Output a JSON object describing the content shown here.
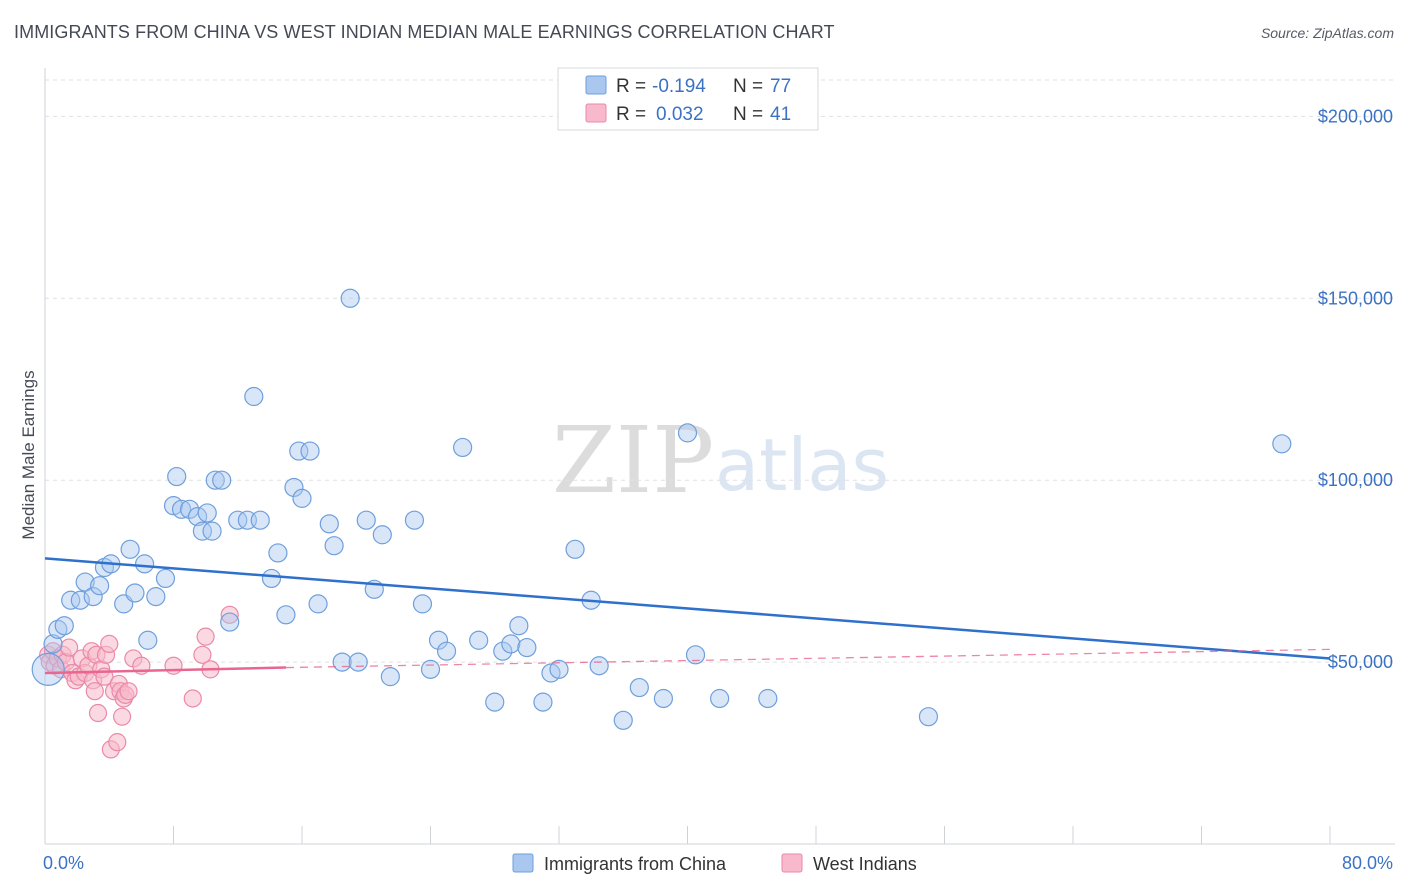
{
  "header": {
    "title": "IMMIGRANTS FROM CHINA VS WEST INDIAN MEDIAN MALE EARNINGS CORRELATION CHART",
    "source": "Source: ZipAtlas.com"
  },
  "watermark": {
    "part1": "ZIP",
    "part2": "atlas"
  },
  "legend": {
    "r_label": "R =",
    "n_label": "N =",
    "rows": [
      {
        "r": "-0.194",
        "n": "77"
      },
      {
        "r": "0.032",
        "n": "41"
      }
    ]
  },
  "bottom_legend": [
    "Immigrants from China",
    "West Indians"
  ],
  "colors": {
    "blue_fill": "#a9c7ef",
    "blue_stroke": "#6f9fdc",
    "blue_line": "#2f70cc",
    "pink_fill": "#f7b9cb",
    "pink_stroke": "#ea8aa8",
    "pink_line": "#e8668f",
    "grid": "#dde1e6",
    "tick_text": "#3b72c4"
  },
  "chart_data": {
    "type": "scatter",
    "title": "IMMIGRANTS FROM CHINA VS WEST INDIAN MEDIAN MALE EARNINGS CORRELATION CHART",
    "xlabel": "",
    "ylabel": "Median Male Earnings",
    "xlim": [
      0,
      80
    ],
    "ylim": [
      0,
      210000
    ],
    "x_tick_labels": [
      "0.0%",
      "80.0%"
    ],
    "y_ticks": [
      50000,
      100000,
      150000,
      200000
    ],
    "y_tick_labels": [
      "$50,000",
      "$100,000",
      "$150,000",
      "$200,000"
    ],
    "grid": true,
    "legend_position": "top-center",
    "series": [
      {
        "name": "Immigrants from China",
        "r": -0.194,
        "n": 77,
        "trend": {
          "x": [
            0,
            80
          ],
          "y": [
            78500,
            51000
          ],
          "style": "solid"
        },
        "points": [
          [
            0.2,
            48000
          ],
          [
            0.5,
            55000
          ],
          [
            0.8,
            59000
          ],
          [
            1.2,
            60000
          ],
          [
            1.6,
            67000
          ],
          [
            2.2,
            67000
          ],
          [
            2.5,
            72000
          ],
          [
            3.0,
            68000
          ],
          [
            3.4,
            71000
          ],
          [
            3.7,
            76000
          ],
          [
            4.1,
            77000
          ],
          [
            4.9,
            66000
          ],
          [
            5.3,
            81000
          ],
          [
            5.6,
            69000
          ],
          [
            6.2,
            77000
          ],
          [
            6.9,
            68000
          ],
          [
            7.5,
            73000
          ],
          [
            6.4,
            56000
          ],
          [
            8.0,
            93000
          ],
          [
            8.5,
            92000
          ],
          [
            8.2,
            101000
          ],
          [
            9.0,
            92000
          ],
          [
            9.5,
            90000
          ],
          [
            10.1,
            91000
          ],
          [
            9.8,
            86000
          ],
          [
            10.4,
            86000
          ],
          [
            10.6,
            100000
          ],
          [
            11.0,
            100000
          ],
          [
            11.5,
            61000
          ],
          [
            12.0,
            89000
          ],
          [
            12.6,
            89000
          ],
          [
            13.0,
            123000
          ],
          [
            13.4,
            89000
          ],
          [
            14.1,
            73000
          ],
          [
            14.5,
            80000
          ],
          [
            15.0,
            63000
          ],
          [
            15.5,
            98000
          ],
          [
            16.0,
            95000
          ],
          [
            15.8,
            108000
          ],
          [
            16.5,
            108000
          ],
          [
            17.0,
            66000
          ],
          [
            17.7,
            88000
          ],
          [
            18.0,
            82000
          ],
          [
            19.0,
            150000
          ],
          [
            18.5,
            50000
          ],
          [
            19.5,
            50000
          ],
          [
            20.0,
            89000
          ],
          [
            20.5,
            70000
          ],
          [
            21.0,
            85000
          ],
          [
            21.5,
            46000
          ],
          [
            23.0,
            89000
          ],
          [
            23.5,
            66000
          ],
          [
            24.0,
            48000
          ],
          [
            24.5,
            56000
          ],
          [
            25.0,
            53000
          ],
          [
            26.0,
            109000
          ],
          [
            27.0,
            56000
          ],
          [
            28.0,
            39000
          ],
          [
            28.5,
            53000
          ],
          [
            29.0,
            55000
          ],
          [
            29.5,
            60000
          ],
          [
            30.0,
            54000
          ],
          [
            31.0,
            39000
          ],
          [
            31.5,
            47000
          ],
          [
            32.0,
            48000
          ],
          [
            33.0,
            81000
          ],
          [
            34.0,
            67000
          ],
          [
            34.5,
            49000
          ],
          [
            36.0,
            34000
          ],
          [
            37.0,
            43000
          ],
          [
            38.5,
            40000
          ],
          [
            40.0,
            113000
          ],
          [
            40.5,
            52000
          ],
          [
            42.0,
            40000
          ],
          [
            45.0,
            40000
          ],
          [
            55.0,
            35000
          ],
          [
            77.0,
            110000
          ]
        ]
      },
      {
        "name": "West Indians",
        "r": 0.032,
        "n": 41,
        "trend": {
          "x": [
            0,
            15
          ],
          "y": [
            47000,
            48500
          ],
          "style": "solid",
          "extension_x": [
            15,
            80
          ],
          "extension_y": [
            48500,
            53500
          ],
          "extension_style": "dashed"
        },
        "points": [
          [
            0.2,
            52000
          ],
          [
            0.3,
            50000
          ],
          [
            0.5,
            53000
          ],
          [
            0.6,
            49000
          ],
          [
            0.8,
            51000
          ],
          [
            1.0,
            48000
          ],
          [
            1.1,
            52000
          ],
          [
            1.3,
            50000
          ],
          [
            1.5,
            54000
          ],
          [
            1.7,
            47000
          ],
          [
            1.9,
            45000
          ],
          [
            2.1,
            46000
          ],
          [
            2.3,
            51000
          ],
          [
            2.5,
            47000
          ],
          [
            2.7,
            49000
          ],
          [
            2.9,
            53000
          ],
          [
            3.0,
            45000
          ],
          [
            3.1,
            42000
          ],
          [
            3.2,
            52000
          ],
          [
            3.3,
            36000
          ],
          [
            3.5,
            48000
          ],
          [
            3.7,
            46000
          ],
          [
            3.8,
            52000
          ],
          [
            4.0,
            55000
          ],
          [
            4.1,
            26000
          ],
          [
            4.3,
            42000
          ],
          [
            4.5,
            28000
          ],
          [
            4.6,
            44000
          ],
          [
            4.7,
            42000
          ],
          [
            4.8,
            35000
          ],
          [
            4.9,
            40000
          ],
          [
            5.0,
            41000
          ],
          [
            5.2,
            42000
          ],
          [
            5.5,
            51000
          ],
          [
            6.0,
            49000
          ],
          [
            8.0,
            49000
          ],
          [
            9.2,
            40000
          ],
          [
            9.8,
            52000
          ],
          [
            10.0,
            57000
          ],
          [
            10.3,
            48000
          ],
          [
            11.5,
            63000
          ]
        ]
      }
    ]
  }
}
